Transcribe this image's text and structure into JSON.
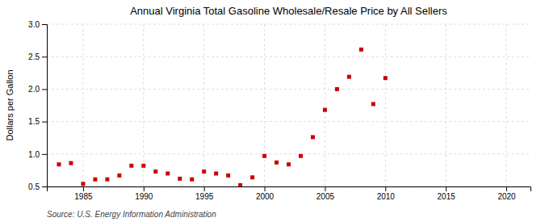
{
  "chart_data": {
    "type": "scatter",
    "title": "Annual Virginia Total Gasoline Wholesale/Resale Price by All Sellers",
    "ylabel": "Dollars per Gallon",
    "source": "Source: U.S. Energy Information Administration",
    "x": [
      1983,
      1984,
      1985,
      1986,
      1987,
      1988,
      1989,
      1990,
      1991,
      1992,
      1993,
      1994,
      1995,
      1996,
      1997,
      1998,
      1999,
      2000,
      2001,
      2002,
      2003,
      2004,
      2005,
      2006,
      2007,
      2008,
      2009,
      2010
    ],
    "values": [
      0.84,
      0.86,
      0.54,
      0.61,
      0.61,
      0.67,
      0.82,
      0.82,
      0.73,
      0.7,
      0.62,
      0.61,
      0.73,
      0.7,
      0.67,
      0.52,
      0.64,
      0.97,
      0.87,
      0.84,
      0.97,
      1.26,
      1.68,
      2.0,
      2.19,
      2.61,
      1.77,
      2.17
    ],
    "color": "#cc0000",
    "marker": "square",
    "xlim": [
      1982,
      2022
    ],
    "xticks": [
      1985,
      1990,
      1995,
      2000,
      2005,
      2010,
      2015,
      2020
    ],
    "ylim": [
      0.5,
      3.0
    ],
    "yticks": [
      0.5,
      {
        "value": 1.0,
        "label": "1.0"
      },
      1.5,
      {
        "value": 2.0,
        "label": "2.0"
      },
      2.5,
      {
        "value": 3.0,
        "label": "3.0"
      }
    ],
    "grid": true
  }
}
